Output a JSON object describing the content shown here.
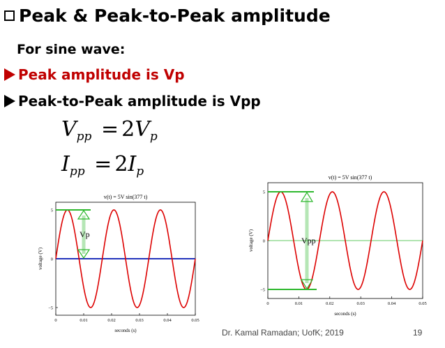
{
  "slide": {
    "title": "Peak & Peak-to-Peak amplitude",
    "subtitle": "For sine wave:",
    "bullets": [
      {
        "text": "Peak amplitude is  Vp",
        "color": "#c00000"
      },
      {
        "text": "Peak-to-Peak amplitude is Vpp",
        "color": "#000000"
      }
    ],
    "equations": [
      {
        "lhs": "V",
        "lhs_sub": "pp",
        "op": "=",
        "coef": "2",
        "rhs": "V",
        "rhs_sub": "p"
      },
      {
        "lhs": "I",
        "lhs_sub": "pp",
        "op": "=",
        "coef": "2",
        "rhs": "I",
        "rhs_sub": "p"
      }
    ],
    "footer": "Dr. Kamal Ramadan; UofK; 2019",
    "page_number": "19",
    "colors": {
      "wave": "#dd0000",
      "peak_marker": "#2eb82e",
      "axis": "#2233bb",
      "arrow": "#2eb82e"
    },
    "icons": {
      "title_bullet": "checkbox-icon",
      "bullet": "arrow-right-icon"
    }
  },
  "chart_data": [
    {
      "type": "line",
      "title": "v(t) = 5V sin(377 t)",
      "xlabel": "seconds (s)",
      "ylabel": "voltage (V)",
      "xlim": [
        0,
        0.05
      ],
      "ylim": [
        -5,
        5
      ],
      "x_ticks": [
        "0",
        "0.01",
        "0.02",
        "0.03",
        "0.04",
        "0.05"
      ],
      "y_ticks": [
        "5",
        "0",
        "−5"
      ],
      "series": [
        {
          "amplitude": 5,
          "omega": 377
        }
      ],
      "annotations": [
        {
          "text": "Vp"
        }
      ]
    },
    {
      "type": "line",
      "title": "v(t) = 5V sin(377 t)",
      "xlabel": "seconds (s)",
      "ylabel": "voltage (V)",
      "xlim": [
        0,
        0.05
      ],
      "ylim": [
        -5,
        5
      ],
      "x_ticks": [
        "0",
        "0.01",
        "0.02",
        "0.03",
        "0.04",
        "0.05"
      ],
      "y_ticks": [
        "5",
        "0",
        "−5"
      ],
      "series": [
        {
          "amplitude": 5,
          "omega": 377
        }
      ],
      "annotations": [
        {
          "text": "Vpp"
        }
      ]
    }
  ]
}
